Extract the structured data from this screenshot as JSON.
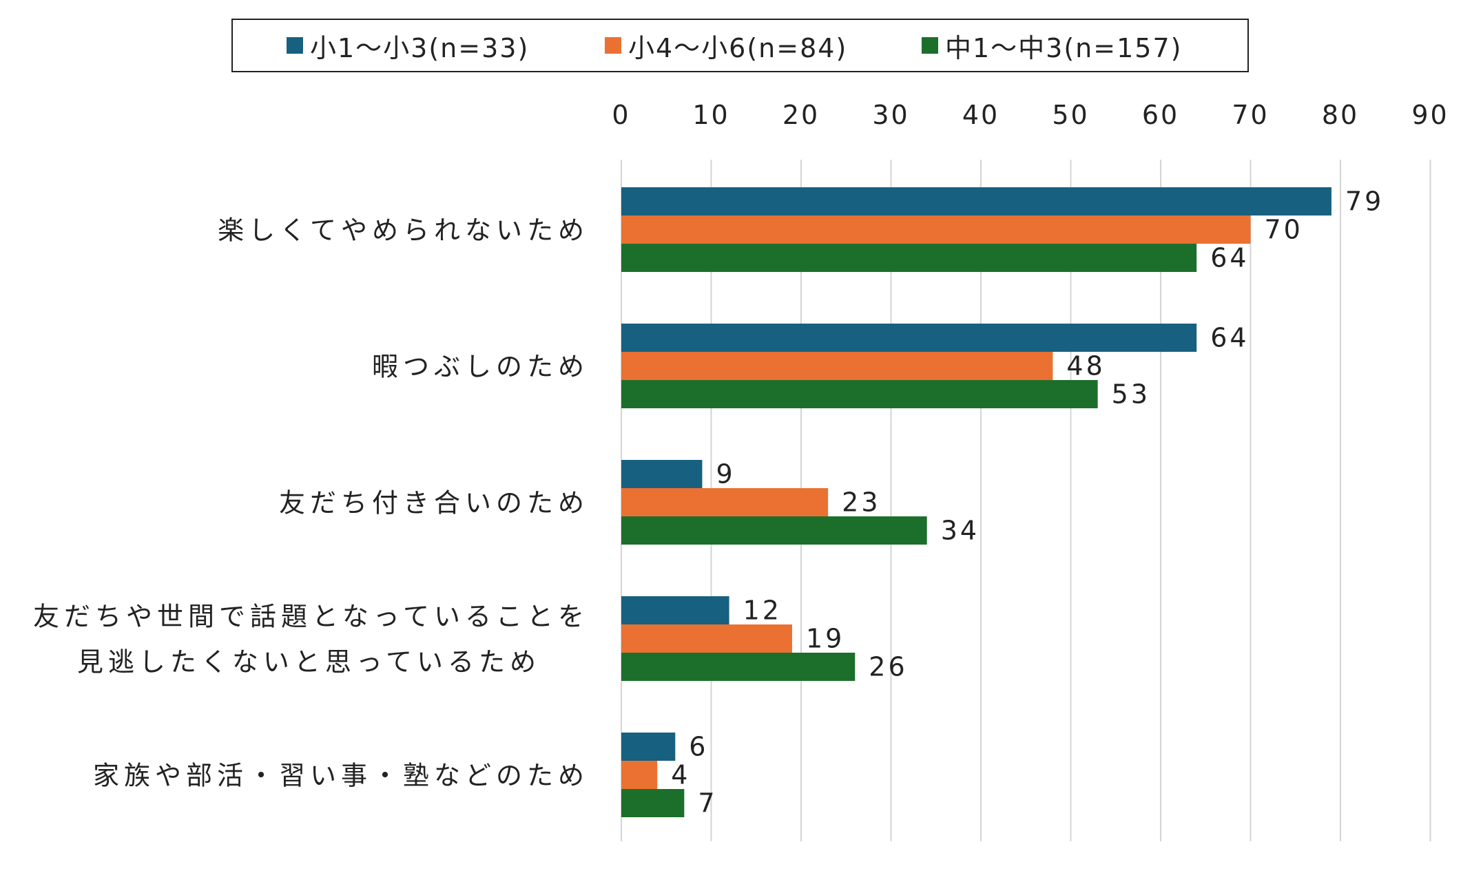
{
  "chart_data": {
    "type": "bar",
    "orientation": "horizontal",
    "categories": [
      [
        "楽しくてやめられないため"
      ],
      [
        "暇つぶしのため"
      ],
      [
        "友だち付き合いのため"
      ],
      [
        "友だちや世間で話題となっていることを",
        "見逃したくないと思っているため"
      ],
      [
        "家族や部活・習い事・塾などのため"
      ]
    ],
    "series": [
      {
        "name": "小1～小3(n=33)",
        "color": "#17607f",
        "values": [
          79,
          64,
          9,
          12,
          6
        ]
      },
      {
        "name": "小4～小6(n=84)",
        "color": "#ea7131",
        "values": [
          70,
          48,
          23,
          19,
          4
        ]
      },
      {
        "name": "中1～中3(n=157)",
        "color": "#1c6f2b",
        "values": [
          64,
          53,
          34,
          26,
          7
        ]
      }
    ],
    "xlim": [
      0,
      90
    ],
    "xticks": [
      "0",
      "10",
      "20",
      "30",
      "40",
      "50",
      "60",
      "70",
      "80",
      "90"
    ],
    "x_axis_position": "top",
    "grid": true,
    "grid_color": "#d4d4d4",
    "legend_position": "top",
    "data_labels": true
  }
}
